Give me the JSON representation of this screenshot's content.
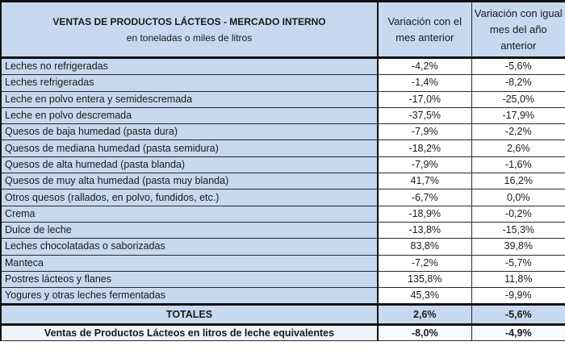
{
  "table": {
    "header": {
      "title_line1": "VENTAS DE PRODUCTOS LÁCTEOS - MERCADO INTERNO",
      "title_line2": "en toneladas o miles de litros",
      "col2": "Variación con el mes anterior",
      "col3": "Variación con igual mes del año anterior"
    },
    "rows": [
      {
        "label": "Leches no refrigeradas",
        "vs_prev_month": "-4,2%",
        "vs_prev_year": "-5,6%"
      },
      {
        "label": "Leches refrigeradas",
        "vs_prev_month": "-1,4%",
        "vs_prev_year": "-8,2%"
      },
      {
        "label": "Leche en polvo entera y semidescremada",
        "vs_prev_month": "-17,0%",
        "vs_prev_year": "-25,0%"
      },
      {
        "label": "Leche en polvo descremada",
        "vs_prev_month": "-37,5%",
        "vs_prev_year": "-17,9%"
      },
      {
        "label": "Quesos de baja humedad (pasta dura)",
        "vs_prev_month": "-7,9%",
        "vs_prev_year": "-2,2%"
      },
      {
        "label": "Quesos de mediana humedad (pasta semidura)",
        "vs_prev_month": "-18,2%",
        "vs_prev_year": "2,6%"
      },
      {
        "label": "Quesos de alta humedad (pasta blanda)",
        "vs_prev_month": "-7,9%",
        "vs_prev_year": "-1,6%"
      },
      {
        "label": "Quesos de muy alta humedad (pasta muy blanda)",
        "vs_prev_month": "41,7%",
        "vs_prev_year": "16,2%"
      },
      {
        "label": "Otros quesos (rallados, en polvo, fundidos, etc.)",
        "vs_prev_month": "-6,7%",
        "vs_prev_year": "0,0%"
      },
      {
        "label": "Crema",
        "vs_prev_month": "-18,9%",
        "vs_prev_year": "-0,2%"
      },
      {
        "label": "Dulce de leche",
        "vs_prev_month": "-13,8%",
        "vs_prev_year": "-15,3%"
      },
      {
        "label": "Leches chocolatadas o saborizadas",
        "vs_prev_month": "83,8%",
        "vs_prev_year": "39,8%"
      },
      {
        "label": "Manteca",
        "vs_prev_month": "-7,2%",
        "vs_prev_year": "-5,7%"
      },
      {
        "label": "Postres lácteos y flanes",
        "vs_prev_month": "135,8%",
        "vs_prev_year": "11,8%"
      },
      {
        "label": "Yogures y otras leches fermentadas",
        "vs_prev_month": "45,3%",
        "vs_prev_year": "-9,9%"
      }
    ],
    "totals": {
      "label": "TOTALES",
      "vs_prev_month": "2,6%",
      "vs_prev_year": "-5,6%"
    },
    "milk_equivalent": {
      "label": "Ventas de Productos Lácteos en litros de leche equivalentes",
      "vs_prev_month": "-8,0%",
      "vs_prev_year": "-4,9%"
    }
  },
  "colors": {
    "header_bg": "#c6d9ef",
    "label_bg": "#c6d9ef",
    "value_bg": "#ffffff",
    "border": "#111111"
  }
}
